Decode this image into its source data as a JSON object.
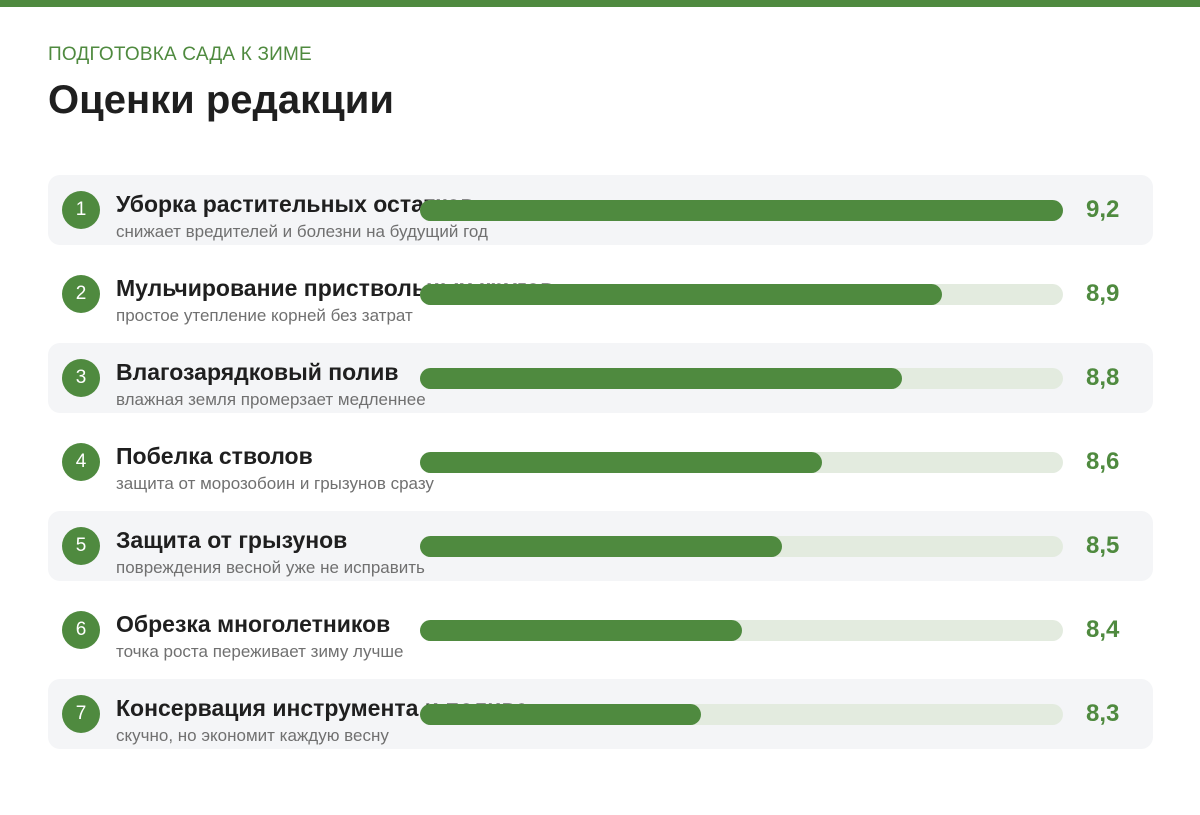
{
  "header": {
    "kicker": "ПОДГОТОВКА САДА К ЗИМЕ",
    "title": "Оценки редакции"
  },
  "colors": {
    "accent": "#4f8a3f",
    "track": "#e3ebdf",
    "row_shade": "#f4f5f7"
  },
  "chart_data": {
    "type": "bar",
    "orientation": "horizontal",
    "title": "Оценки редакции",
    "subtitle": "ПОДГОТОВКА САДА К ЗИМЕ",
    "xlim": [
      7.6,
      9.2
    ],
    "items": [
      {
        "rank": "1",
        "label": "Уборка растительных остатков",
        "sub": "снижает вредителей и болезни на будущий год",
        "value": 9.2,
        "value_label": "9,2"
      },
      {
        "rank": "2",
        "label": "Мульчирование приствольных кругов",
        "sub": "простое утепление корней без затрат",
        "value": 8.9,
        "value_label": "8,9"
      },
      {
        "rank": "3",
        "label": "Влагозарядковый полив",
        "sub": "влажная земля промерзает медленнее",
        "value": 8.8,
        "value_label": "8,8"
      },
      {
        "rank": "4",
        "label": "Побелка стволов",
        "sub": "защита от морозобоин и грызунов сразу",
        "value": 8.6,
        "value_label": "8,6"
      },
      {
        "rank": "5",
        "label": "Защита от грызунов",
        "sub": "повреждения весной уже не исправить",
        "value": 8.5,
        "value_label": "8,5"
      },
      {
        "rank": "6",
        "label": "Обрезка многолетников",
        "sub": "точка роста переживает зиму лучше",
        "value": 8.4,
        "value_label": "8,4"
      },
      {
        "rank": "7",
        "label": "Консервация инструмента и полива",
        "sub": "скучно, но экономит каждую весну",
        "value": 8.3,
        "value_label": "8,3"
      }
    ]
  }
}
